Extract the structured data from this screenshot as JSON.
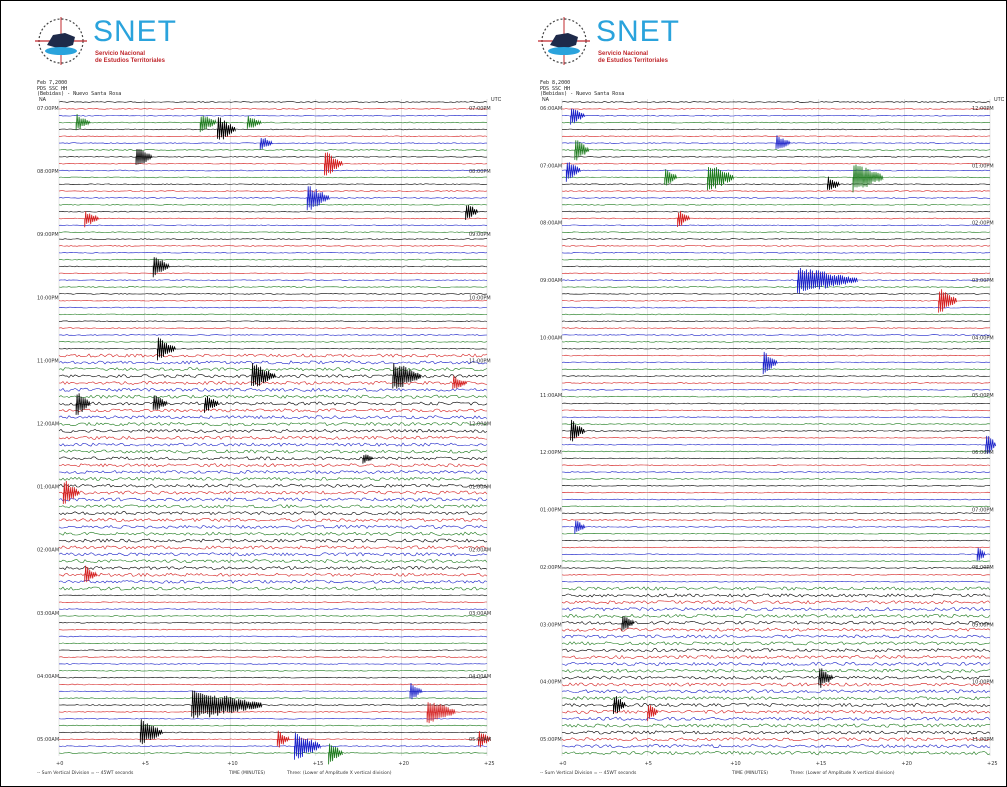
{
  "brand": {
    "logo_text": "SNET",
    "subtitle_line1": "Servicio Nacional",
    "subtitle_line2": "de Estudios Territoriales"
  },
  "colors": {
    "trace_cycle": [
      "#000000",
      "#d42020",
      "#1b22c8",
      "#1c7a1c"
    ],
    "brand_blue": "#2aa3dc",
    "brand_red": "#c0282d"
  },
  "panels": [
    {
      "header": [
        "Feb 7,2000",
        "PDS SSC HH",
        "(Bebidas) - Nuevo Santa Rosa"
      ],
      "unit_left": "NA",
      "unit_right": "UTC",
      "time_labels_left": [
        "07:00PM",
        "08:00PM",
        "09:00PM",
        "10:00PM",
        "11:00PM",
        "12:00AM",
        "01:00AM",
        "02:00AM",
        "03:00AM",
        "04:00AM",
        "05:00AM"
      ],
      "time_labels_right": [
        "07:00PM",
        "08:00PM",
        "09:00PM",
        "10:00PM",
        "11:00PM",
        "12:00AM",
        "01:00AM",
        "02:00AM",
        "03:00AM",
        "04:00AM",
        "05:00AM"
      ],
      "x_ticks": [
        "+0",
        "+5",
        "+10",
        "+15",
        "+20",
        "+25"
      ],
      "footer_left": "-- Sum Vertical Division = -- 45WT seconds",
      "footer_mid": "TIME (MINUTES)",
      "footer_right": "Three: (Lower of Amplitude X vertical division)"
    },
    {
      "header": [
        "Feb 8,2000",
        "PDS SSC HH",
        "(Bebidas) - Nuevo Santa Rosa"
      ],
      "unit_left": "NA",
      "unit_right": "UTC",
      "time_labels_left": [
        "06:00AM",
        "07:00AM",
        "08:00AM",
        "09:00AM",
        "10:00AM",
        "11:00AM",
        "12:00PM",
        "01:00PM",
        "02:00PM",
        "03:00PM",
        "04:00PM",
        "05:00PM"
      ],
      "time_labels_right": [
        "12:00PM",
        "01:00PM",
        "02:00PM",
        "03:00PM",
        "04:00PM",
        "05:00PM",
        "06:00PM",
        "07:00PM",
        "08:00PM",
        "09:00PM",
        "10:00PM",
        "11:00PM"
      ],
      "x_ticks": [
        "+0",
        "+5",
        "+10",
        "+15",
        "+20",
        "+25"
      ],
      "footer_left": "-- Sum Vertical Division = -- 45WT seconds",
      "footer_mid": "TIME (MINUTES)",
      "footer_right": "Three: (Lower of Amplitude X vertical division)"
    }
  ]
}
